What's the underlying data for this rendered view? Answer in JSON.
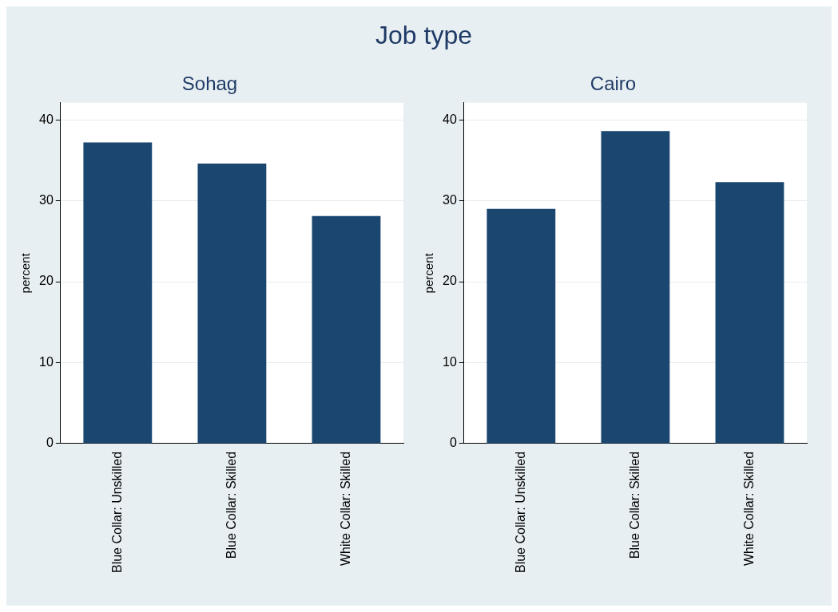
{
  "chart_data": [
    {
      "type": "bar",
      "title": "Job type",
      "subtitle": "Sohag",
      "ylabel": "percent",
      "categories": [
        "Blue Collar: Unskilled",
        "Blue Collar: Skilled",
        "White Collar: Skilled"
      ],
      "values": [
        37.2,
        34.6,
        28.1
      ],
      "color": "#1a4670",
      "ylim": [
        0,
        42.1
      ],
      "yticks": [
        0,
        10,
        20,
        30,
        40
      ],
      "grid": "y",
      "legend": false
    },
    {
      "type": "bar",
      "subtitle": "Cairo",
      "ylabel": "percent",
      "categories": [
        "Blue Collar: Unskilled",
        "Blue Collar: Skilled",
        "White Collar: Skilled"
      ],
      "values": [
        29.0,
        38.6,
        32.3
      ],
      "color": "#1a4670",
      "ylim": [
        0,
        42.1
      ],
      "yticks": [
        0,
        10,
        20,
        30,
        40
      ],
      "grid": "y",
      "legend": false
    }
  ]
}
